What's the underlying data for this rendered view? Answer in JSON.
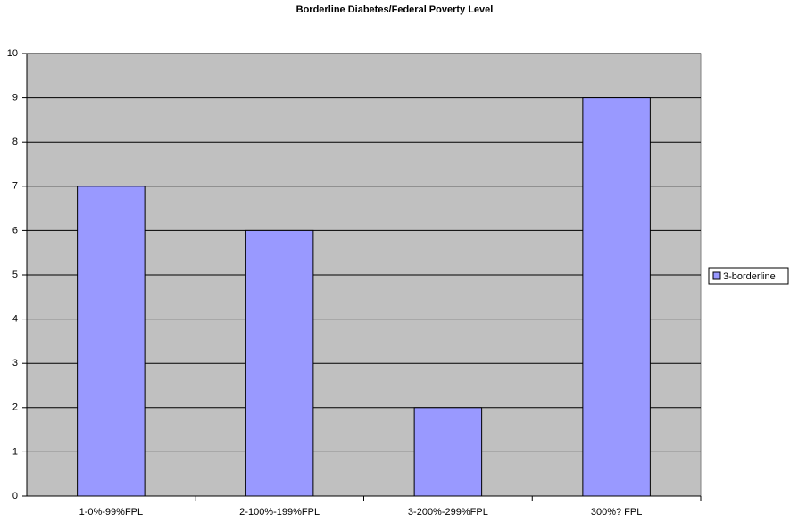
{
  "chart_data": {
    "type": "bar",
    "title": "Borderline Diabetes/Federal Poverty Level",
    "categories": [
      "1-0%-99%FPL",
      "2-100%-199%FPL",
      "3-200%-299%FPL",
      "300%? FPL"
    ],
    "series": [
      {
        "name": "3-borderline",
        "color": "#9999ff",
        "values": [
          7,
          6,
          2,
          9
        ]
      }
    ],
    "ylim": [
      0,
      10
    ],
    "yticks": [
      0,
      1,
      2,
      3,
      4,
      5,
      6,
      7,
      8,
      9,
      10
    ],
    "grid": true,
    "legend": "right"
  }
}
